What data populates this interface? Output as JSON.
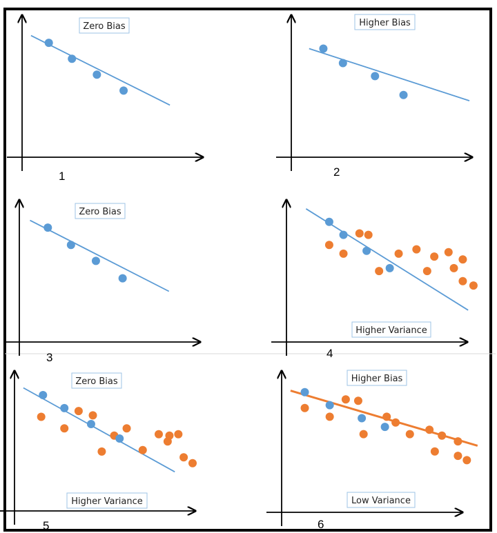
{
  "colors": {
    "blue": "#5B9BD5",
    "orange": "#ED7D31",
    "axis": "#000000",
    "label_border": "#9DC3E6",
    "frame": "#000000"
  },
  "panels": [
    {
      "number": "1",
      "labels": [
        "Zero Bias"
      ],
      "blue_points": [
        [
          0.15,
          0.79
        ],
        [
          0.28,
          0.68
        ],
        [
          0.42,
          0.57
        ],
        [
          0.57,
          0.46
        ]
      ],
      "orange_points": [],
      "fit_line": {
        "color": "blue",
        "from": [
          0.05,
          0.84
        ],
        "to": [
          0.83,
          0.36
        ]
      }
    },
    {
      "number": "2",
      "labels": [
        "Higher Bias"
      ],
      "blue_points": [
        [
          0.18,
          0.75
        ],
        [
          0.29,
          0.65
        ],
        [
          0.47,
          0.56
        ],
        [
          0.63,
          0.43
        ]
      ],
      "orange_points": [],
      "fit_line": {
        "color": "blue",
        "from": [
          0.1,
          0.75
        ],
        "to": [
          1.0,
          0.39
        ]
      }
    },
    {
      "number": "3",
      "labels": [
        "Zero Bias"
      ],
      "blue_points": [
        [
          0.16,
          0.79
        ],
        [
          0.29,
          0.67
        ],
        [
          0.43,
          0.56
        ],
        [
          0.58,
          0.44
        ]
      ],
      "orange_points": [],
      "fit_line": {
        "color": "blue",
        "from": [
          0.06,
          0.84
        ],
        "to": [
          0.84,
          0.35
        ]
      }
    },
    {
      "number": "4",
      "labels": [
        "Higher Variance"
      ],
      "blue_points": [
        [
          0.24,
          0.83
        ],
        [
          0.32,
          0.74
        ],
        [
          0.45,
          0.63
        ],
        [
          0.58,
          0.51
        ]
      ],
      "orange_points": [
        [
          0.24,
          0.67
        ],
        [
          0.32,
          0.61
        ],
        [
          0.41,
          0.75
        ],
        [
          0.46,
          0.74
        ],
        [
          0.52,
          0.49
        ],
        [
          0.63,
          0.61
        ],
        [
          0.73,
          0.64
        ],
        [
          0.79,
          0.49
        ],
        [
          0.83,
          0.59
        ],
        [
          0.94,
          0.51
        ],
        [
          0.91,
          0.62
        ],
        [
          0.99,
          0.42
        ],
        [
          1.05,
          0.39
        ],
        [
          0.99,
          0.57
        ]
      ],
      "fit_line": {
        "color": "blue",
        "from": [
          0.11,
          0.92
        ],
        "to": [
          1.02,
          0.22
        ]
      }
    },
    {
      "number": "5",
      "labels": [
        "Zero Bias",
        "Higher Variance"
      ],
      "blue_points": [
        [
          0.16,
          0.8
        ],
        [
          0.28,
          0.71
        ],
        [
          0.43,
          0.6
        ],
        [
          0.59,
          0.5
        ]
      ],
      "orange_points": [
        [
          0.15,
          0.65
        ],
        [
          0.28,
          0.57
        ],
        [
          0.36,
          0.69
        ],
        [
          0.44,
          0.66
        ],
        [
          0.49,
          0.41
        ],
        [
          0.56,
          0.52
        ],
        [
          0.63,
          0.57
        ],
        [
          0.72,
          0.42
        ],
        [
          0.81,
          0.53
        ],
        [
          0.86,
          0.48
        ],
        [
          0.87,
          0.52
        ],
        [
          0.95,
          0.37
        ],
        [
          1.0,
          0.33
        ],
        [
          0.92,
          0.53
        ]
      ],
      "fit_line": {
        "color": "blue",
        "from": [
          0.05,
          0.85
        ],
        "to": [
          0.9,
          0.27
        ]
      }
    },
    {
      "number": "6",
      "labels": [
        "Higher Bias",
        "Low Variance"
      ],
      "blue_points": [
        [
          0.13,
          0.83
        ],
        [
          0.27,
          0.74
        ],
        [
          0.45,
          0.65
        ],
        [
          0.58,
          0.59
        ]
      ],
      "orange_points": [
        [
          0.13,
          0.72
        ],
        [
          0.27,
          0.66
        ],
        [
          0.36,
          0.78
        ],
        [
          0.43,
          0.77
        ],
        [
          0.46,
          0.54
        ],
        [
          0.59,
          0.66
        ],
        [
          0.64,
          0.62
        ],
        [
          0.72,
          0.54
        ],
        [
          0.83,
          0.57
        ],
        [
          0.86,
          0.42
        ],
        [
          0.9,
          0.53
        ],
        [
          0.99,
          0.39
        ],
        [
          1.04,
          0.36
        ],
        [
          0.99,
          0.49
        ]
      ],
      "fit_line": {
        "color": "orange",
        "from": [
          0.05,
          0.84
        ],
        "to": [
          1.1,
          0.46
        ]
      }
    }
  ]
}
